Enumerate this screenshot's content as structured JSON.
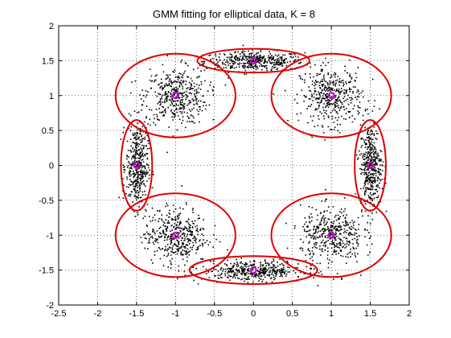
{
  "chart_data": {
    "type": "scatter",
    "title": "GMM fitting for elliptical data, K = 8",
    "xlabel": "",
    "ylabel": "",
    "xlim": [
      -2.5,
      2
    ],
    "ylim": [
      -2,
      2
    ],
    "xticks": [
      -2.5,
      -2,
      -1.5,
      -1,
      -0.5,
      0,
      0.5,
      1,
      1.5,
      2
    ],
    "xtick_labels": [
      "-2.5",
      "-2",
      "-1.5",
      "-1",
      "-0.5",
      "0",
      "0.5",
      "1",
      "1.5",
      "2"
    ],
    "yticks": [
      -2,
      -1.5,
      -1,
      -0.5,
      0,
      0.5,
      1,
      1.5,
      2
    ],
    "ytick_labels": [
      "-2",
      "-1.5",
      "-1",
      "-0.5",
      "0",
      "0.5",
      "1",
      "1.5",
      "2"
    ],
    "grid": true,
    "colors": {
      "points": "#000000",
      "ellipses": "#e00000",
      "centers": "#cc00cc"
    },
    "clusters": [
      {
        "center": [
          0,
          1.5
        ],
        "spread": [
          0.32,
          0.07
        ],
        "ellipse_radii": [
          0.72,
          0.17
        ]
      },
      {
        "center": [
          -1,
          1
        ],
        "spread": [
          0.2,
          0.2
        ],
        "ellipse_radii": [
          0.77,
          0.6
        ]
      },
      {
        "center": [
          1,
          1
        ],
        "spread": [
          0.2,
          0.2
        ],
        "ellipse_radii": [
          0.77,
          0.6
        ]
      },
      {
        "center": [
          -1.5,
          0
        ],
        "spread": [
          0.07,
          0.3
        ],
        "ellipse_radii": [
          0.2,
          0.65
        ]
      },
      {
        "center": [
          1.5,
          0
        ],
        "spread": [
          0.07,
          0.3
        ],
        "ellipse_radii": [
          0.2,
          0.65
        ]
      },
      {
        "center": [
          -1,
          -1
        ],
        "spread": [
          0.2,
          0.2
        ],
        "ellipse_radii": [
          0.77,
          0.6
        ]
      },
      {
        "center": [
          1,
          -1
        ],
        "spread": [
          0.2,
          0.2
        ],
        "ellipse_radii": [
          0.77,
          0.6
        ]
      },
      {
        "center": [
          0,
          -1.5
        ],
        "spread": [
          0.32,
          0.07
        ],
        "ellipse_radii": [
          0.82,
          0.2
        ]
      }
    ],
    "points_per_cluster": 420
  }
}
